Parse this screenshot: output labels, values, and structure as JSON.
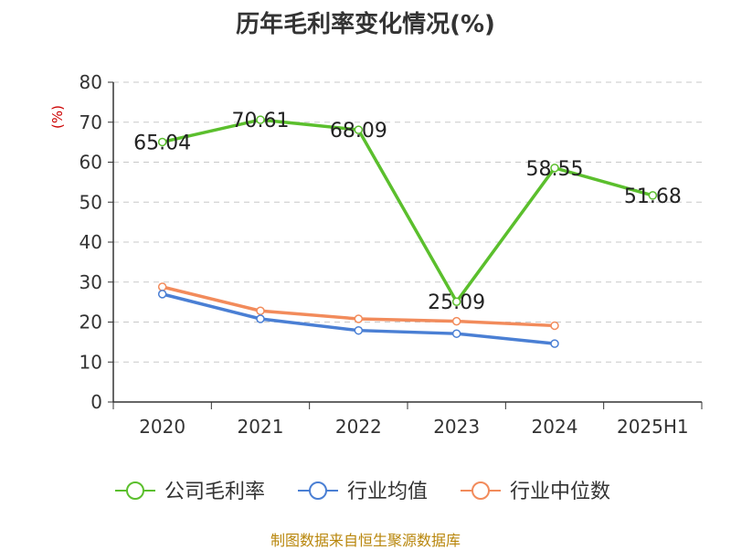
{
  "title": "历年毛利率变化情况(%)",
  "source": "制图数据来自恒生聚源数据库",
  "chart_data": {
    "type": "line",
    "title": "历年毛利率变化情况(%)",
    "ylabel": "(%)",
    "xlabel": "",
    "categories": [
      "2020",
      "2021",
      "2022",
      "2023",
      "2024",
      "2025H1"
    ],
    "ylim": [
      0,
      80
    ],
    "yticks": [
      0,
      10,
      20,
      30,
      40,
      50,
      60,
      70,
      80
    ],
    "grid": true,
    "legend_position": "bottom",
    "series": [
      {
        "name": "公司毛利率",
        "color": "#5bbf2d",
        "values": [
          65.04,
          70.61,
          68.09,
          25.09,
          58.55,
          51.68
        ],
        "labels": [
          "65.04",
          "70.61",
          "68.09",
          "25.09",
          "58.55",
          "51.68"
        ]
      },
      {
        "name": "行业均值",
        "color": "#4a7fd4",
        "values": [
          27.0,
          20.8,
          17.9,
          17.1,
          14.6,
          null
        ]
      },
      {
        "name": "行业中位数",
        "color": "#f28b5b",
        "values": [
          28.8,
          22.8,
          20.8,
          20.2,
          19.1,
          null
        ]
      }
    ]
  }
}
